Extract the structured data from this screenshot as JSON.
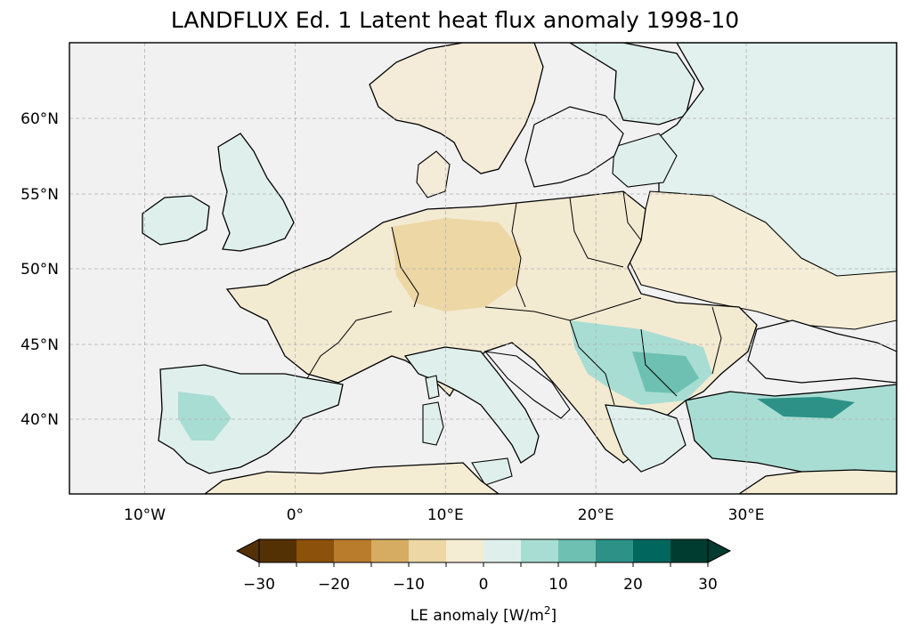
{
  "title": "LANDFLUX Ed. 1 Latent heat flux anomaly 1998-10",
  "map": {
    "lon_range": [
      -15,
      40
    ],
    "lat_range": [
      35,
      65
    ],
    "projection": "PlateCarree",
    "gridlines": true,
    "background_color": "#f0f0f0",
    "x_tick_labels": [
      "10°W",
      "0°",
      "10°E",
      "20°E",
      "30°E"
    ],
    "y_tick_labels": [
      "60°N",
      "55°N",
      "50°N",
      "45°N",
      "40°N"
    ]
  },
  "colorbar": {
    "label_prefix": "LE anomaly [W/m",
    "label_sup": "2",
    "label_suffix": "]",
    "tick_labels": [
      "−30",
      "−20",
      "−10",
      "0",
      "10",
      "20",
      "30"
    ],
    "extend": "both",
    "colormap": "BrBG",
    "levels": [
      -30,
      -25,
      -20,
      -15,
      -10,
      -5,
      0,
      5,
      10,
      15,
      20,
      25,
      30
    ],
    "colors": [
      "#543005",
      "#8c510a",
      "#b97b2c",
      "#d6ac62",
      "#ecd7a5",
      "#f5ecd4",
      "#dff0ec",
      "#a8ddd3",
      "#6dc0b2",
      "#2d9187",
      "#00665e",
      "#003c30"
    ]
  }
}
